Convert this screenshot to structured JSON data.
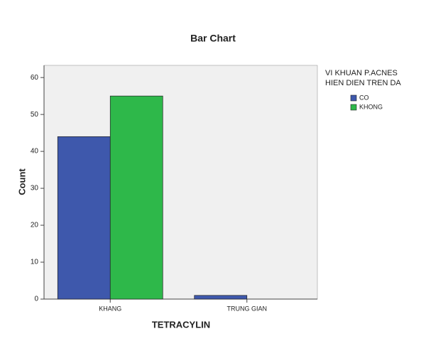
{
  "chart_data": {
    "type": "bar",
    "title": "Bar Chart",
    "x_label": "TETRACYLIN",
    "y_label": "Count",
    "categories": [
      "KHANG",
      "TRUNG GIAN"
    ],
    "legend_title": [
      "VI KHUAN P.ACNES",
      "HIEN DIEN TREN DA"
    ],
    "series": [
      {
        "name": "CO",
        "color": "#3e58ac",
        "values": [
          44,
          1
        ]
      },
      {
        "name": "KHONG",
        "color": "#2eb84a",
        "values": [
          55,
          0
        ]
      }
    ],
    "ylim": [
      0,
      63.3
    ],
    "yticks": [
      0,
      10,
      20,
      30,
      40,
      50,
      60
    ]
  }
}
